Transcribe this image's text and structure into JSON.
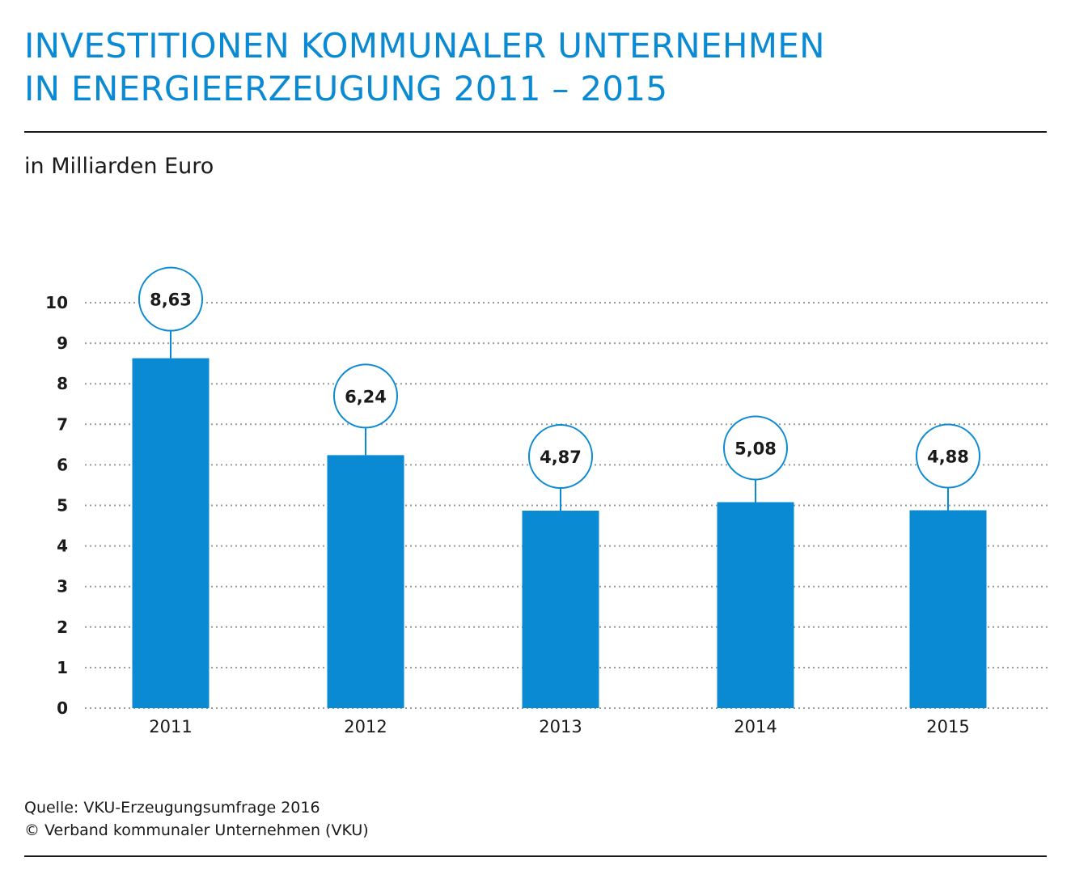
{
  "title_lines": [
    "INVESTITIONEN KOMMUNALER UNTERNEHMEN",
    "IN ENERGIEERZEUGUNG 2011 – 2015"
  ],
  "subtitle": "in Milliarden Euro",
  "source_lines": [
    "Quelle: VKU-Erzeugungsumfrage 2016",
    "© Verband kommunaler Unternehmen (VKU)"
  ],
  "colors": {
    "bar": "#0a8ad3",
    "title": "#0a8ad3",
    "text": "#1a1a1a",
    "grid": "#9a9a9a"
  },
  "chart_data": {
    "type": "bar",
    "title": "INVESTITIONEN KOMMUNALER UNTERNEHMEN IN ENERGIEERZEUGUNG 2011 – 2015",
    "ylabel": "in Milliarden Euro",
    "xlabel": "",
    "categories": [
      "2011",
      "2012",
      "2013",
      "2014",
      "2015"
    ],
    "values": [
      8.63,
      6.24,
      4.87,
      5.08,
      4.88
    ],
    "value_labels": [
      "8,63",
      "6,24",
      "4,87",
      "5,08",
      "4,88"
    ],
    "ylim": [
      0,
      10
    ],
    "yticks": [
      0,
      1,
      2,
      3,
      4,
      5,
      6,
      7,
      8,
      9,
      10
    ],
    "grid": true,
    "grid_style": "dotted",
    "legend": "none"
  }
}
